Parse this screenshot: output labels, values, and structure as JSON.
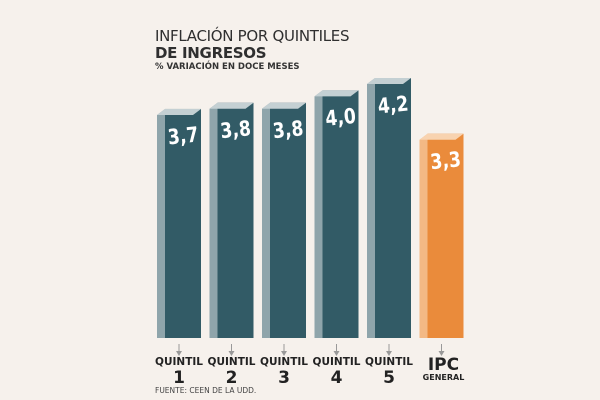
{
  "chart_data": {
    "type": "bar",
    "title": "INFLACIÓN POR QUINTILES",
    "title_line2": "DE INGRESOS",
    "subtitle": "% VARIACIÓN EN DOCE MESES",
    "source": "FUENTE: CEEN DE LA UDD.",
    "value_labels": [
      "3,7",
      "3,8",
      "3,8",
      "4,0",
      "4,2",
      "3,3"
    ],
    "values": [
      3.7,
      3.8,
      3.8,
      4.0,
      4.2,
      3.3
    ],
    "categories": [
      {
        "line1": "QUINTIL",
        "line2": "1"
      },
      {
        "line1": "QUINTIL",
        "line2": "2"
      },
      {
        "line1": "QUINTIL",
        "line2": "3"
      },
      {
        "line1": "QUINTIL",
        "line2": "4"
      },
      {
        "line1": "QUINTIL",
        "line2": "5"
      },
      {
        "line1": "IPC",
        "line2": "GENERAL"
      }
    ],
    "ylim": [
      0,
      4.2
    ],
    "colors": {
      "quintil_front": "#325b66",
      "quintil_side": "#8fa5ab",
      "quintil_top": "#c4d0d3",
      "ipc_front": "#ea8b3b",
      "ipc_side": "#f3b985",
      "ipc_top": "#f8d3b0"
    }
  }
}
